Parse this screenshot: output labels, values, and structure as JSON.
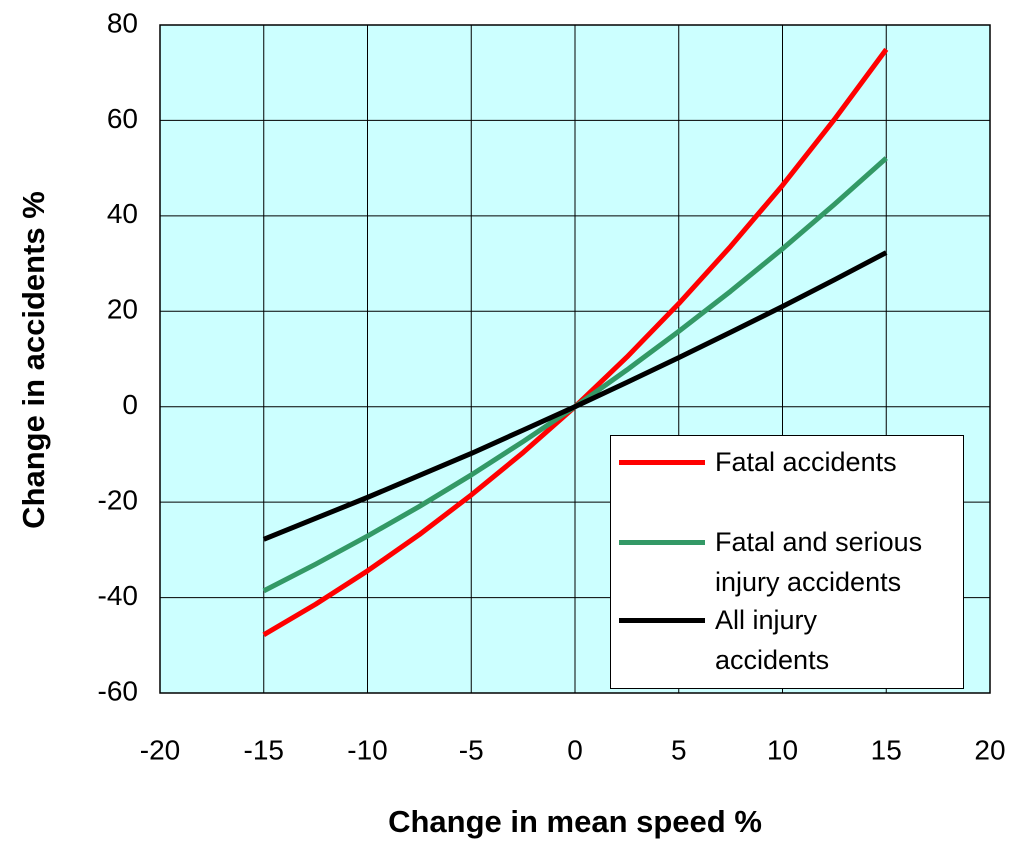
{
  "chart_data": {
    "type": "line",
    "xlabel": "Change in mean speed %",
    "ylabel": "Change in accidents %",
    "x": [
      -15,
      -12.5,
      -10,
      -7.5,
      -5,
      -2.5,
      0,
      2.5,
      5,
      7.5,
      10,
      12.5,
      15
    ],
    "series": [
      {
        "name": "Fatal accidents",
        "color": "#ff0000",
        "values": [
          -47.8,
          -41.4,
          -34.4,
          -26.8,
          -18.5,
          -9.6,
          0,
          10.4,
          21.6,
          33.6,
          46.4,
          60.2,
          74.9
        ]
      },
      {
        "name": "Fatal and serious injury accidents",
        "color": "#339966",
        "values": [
          -38.6,
          -33.0,
          -27.1,
          -20.9,
          -14.3,
          -7.3,
          0,
          7.7,
          15.8,
          24.2,
          33.1,
          42.4,
          52.1
        ]
      },
      {
        "name": "All injury accidents",
        "color": "#000000",
        "values": [
          -27.8,
          -23.4,
          -19.0,
          -14.4,
          -9.8,
          -4.9,
          0,
          5.1,
          10.3,
          15.6,
          21.0,
          26.6,
          32.3
        ]
      }
    ],
    "xlim": [
      -20,
      20
    ],
    "xticks": [
      -20,
      -15,
      -10,
      -5,
      0,
      5,
      10,
      15,
      20
    ],
    "ylim": [
      -60,
      80
    ],
    "yticks": [
      -60,
      -40,
      -20,
      0,
      20,
      40,
      60,
      80
    ],
    "grid": true,
    "legend": "lower right"
  }
}
